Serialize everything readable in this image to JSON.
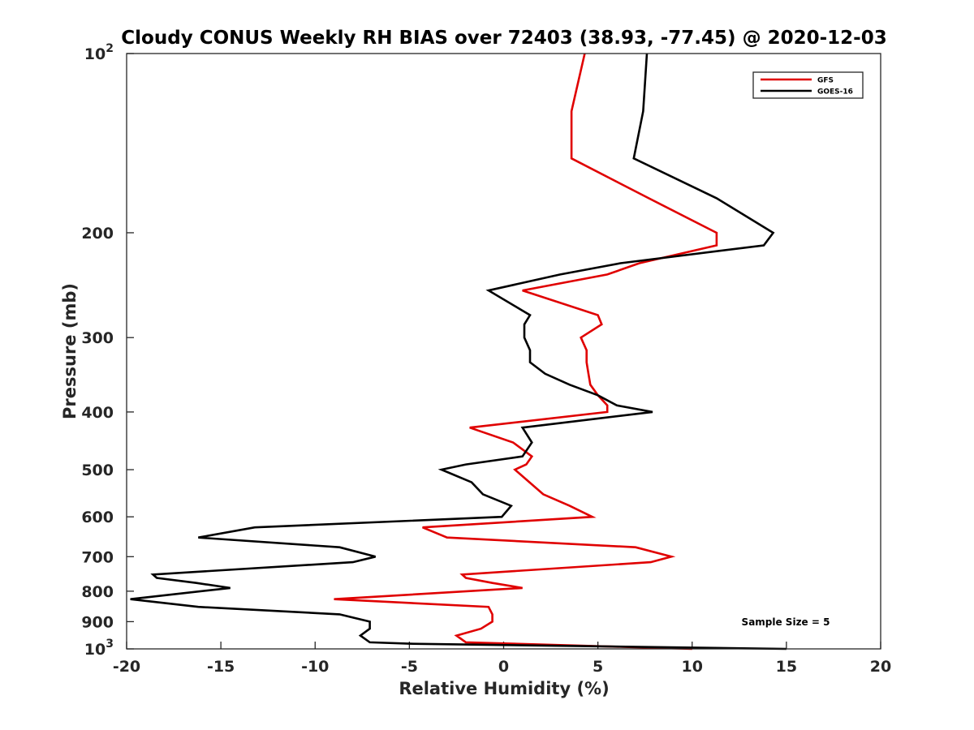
{
  "chart_data": {
    "type": "line",
    "title": "Cloudy CONUS Weekly RH BIAS over 72403 (38.93, -77.45) @ 2020-12-03",
    "xlabel": "Relative Humidity (%)",
    "ylabel": "Pressure (mb)",
    "xlim": [
      -20,
      20
    ],
    "ylim": [
      100,
      1000
    ],
    "y_scale": "log",
    "y_reversed": true,
    "x_ticks": [
      "-20",
      "-15",
      "-10",
      "-5",
      "0",
      "5",
      "10",
      "15",
      "20"
    ],
    "y_ticks": [
      {
        "value": 100,
        "base": "10",
        "exp": "2"
      },
      {
        "value": 200,
        "label": "200"
      },
      {
        "value": 300,
        "label": "300"
      },
      {
        "value": 400,
        "label": "400"
      },
      {
        "value": 500,
        "label": "500"
      },
      {
        "value": 600,
        "label": "600"
      },
      {
        "value": 700,
        "label": "700"
      },
      {
        "value": 800,
        "label": "800"
      },
      {
        "value": 900,
        "label": "900"
      },
      {
        "value": 1000,
        "base": "10",
        "exp": "3"
      }
    ],
    "legend_position": "top-right",
    "annotation": "Sample Size = 5",
    "series": [
      {
        "name": "GFS",
        "color": "#e00000",
        "points": [
          [
            4.3,
            100
          ],
          [
            3.6,
            125
          ],
          [
            3.6,
            150
          ],
          [
            7.7,
            175
          ],
          [
            11.3,
            200
          ],
          [
            11.3,
            210
          ],
          [
            7.2,
            225
          ],
          [
            5.5,
            235
          ],
          [
            1.0,
            250
          ],
          [
            5.0,
            275
          ],
          [
            5.2,
            285
          ],
          [
            4.1,
            300
          ],
          [
            4.4,
            315
          ],
          [
            4.4,
            330
          ],
          [
            4.5,
            345
          ],
          [
            4.6,
            360
          ],
          [
            5.0,
            375
          ],
          [
            5.5,
            390
          ],
          [
            5.5,
            400
          ],
          [
            -1.8,
            425
          ],
          [
            0.5,
            450
          ],
          [
            1.5,
            475
          ],
          [
            1.2,
            490
          ],
          [
            0.6,
            500
          ],
          [
            2.1,
            550
          ],
          [
            3.5,
            575
          ],
          [
            4.7,
            600
          ],
          [
            -4.3,
            625
          ],
          [
            -3.0,
            650
          ],
          [
            7.0,
            675
          ],
          [
            8.9,
            700
          ],
          [
            7.8,
            715
          ],
          [
            -2.2,
            750
          ],
          [
            -2.0,
            760
          ],
          [
            -0.6,
            775
          ],
          [
            1.0,
            790
          ],
          [
            -9.0,
            825
          ],
          [
            -0.8,
            850
          ],
          [
            -0.6,
            875
          ],
          [
            -0.6,
            900
          ],
          [
            -1.2,
            925
          ],
          [
            -2.5,
            950
          ],
          [
            -2.0,
            975
          ],
          [
            10.0,
            1000
          ]
        ]
      },
      {
        "name": "GOES-16",
        "color": "#000000",
        "points": [
          [
            7.6,
            100
          ],
          [
            7.4,
            125
          ],
          [
            6.9,
            150
          ],
          [
            11.3,
            175
          ],
          [
            14.3,
            200
          ],
          [
            13.8,
            210
          ],
          [
            6.2,
            225
          ],
          [
            3.0,
            235
          ],
          [
            -0.8,
            250
          ],
          [
            1.4,
            275
          ],
          [
            1.1,
            285
          ],
          [
            1.1,
            300
          ],
          [
            1.4,
            315
          ],
          [
            1.4,
            330
          ],
          [
            2.2,
            345
          ],
          [
            3.5,
            360
          ],
          [
            5.0,
            375
          ],
          [
            6.0,
            390
          ],
          [
            7.9,
            400
          ],
          [
            1.0,
            425
          ],
          [
            1.5,
            450
          ],
          [
            1.0,
            475
          ],
          [
            -2.0,
            490
          ],
          [
            -3.3,
            500
          ],
          [
            -1.7,
            525
          ],
          [
            -1.1,
            550
          ],
          [
            0.4,
            575
          ],
          [
            -0.1,
            600
          ],
          [
            -13.2,
            625
          ],
          [
            -16.2,
            650
          ],
          [
            -8.7,
            675
          ],
          [
            -6.8,
            700
          ],
          [
            -8.0,
            715
          ],
          [
            -18.6,
            750
          ],
          [
            -18.4,
            760
          ],
          [
            -16.3,
            775
          ],
          [
            -14.5,
            790
          ],
          [
            -19.8,
            825
          ],
          [
            -16.2,
            850
          ],
          [
            -8.7,
            875
          ],
          [
            -7.1,
            900
          ],
          [
            -7.1,
            925
          ],
          [
            -7.6,
            950
          ],
          [
            -7.1,
            975
          ],
          [
            -5.0,
            980
          ],
          [
            15.0,
            1000
          ]
        ]
      }
    ]
  }
}
